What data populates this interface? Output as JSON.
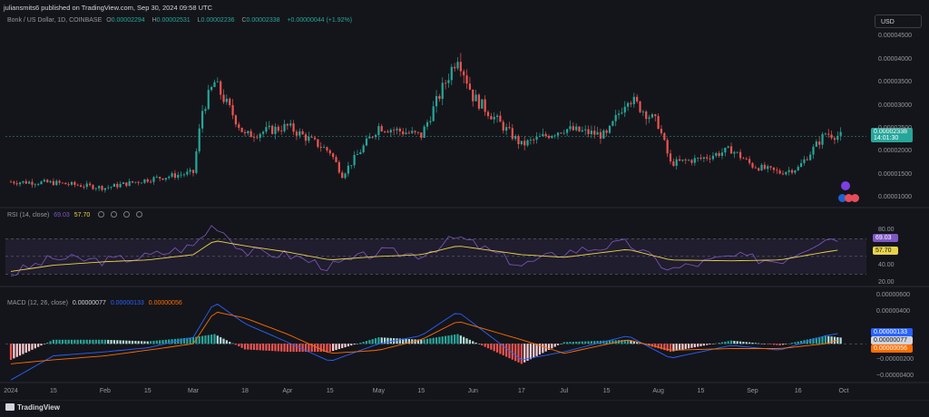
{
  "header": {
    "publisher": "juliansmits6 published on TradingView.com, Sep 30, 2024 09:58 UTC"
  },
  "symbol": {
    "name": "Bonk / US Dollar, 1D, COINBASE",
    "o_label": "O",
    "o": "0.00002294",
    "h_label": "H",
    "h": "0.00002531",
    "l_label": "L",
    "l": "0.00002236",
    "c_label": "C",
    "c": "0.00002338",
    "change": "+0.00000044 (+1.92%)"
  },
  "currency_button": "USD",
  "price_axis": {
    "ticks": [
      "0.00004500",
      "0.00004000",
      "0.00003500",
      "0.00003000",
      "0.00002500",
      "0.00002000",
      "0.00001500",
      "0.00001000"
    ],
    "last_price": "0.00002338",
    "countdown": "14:01:30"
  },
  "rsi": {
    "legend_name": "RSI (14, close)",
    "rsi_value": "69.03",
    "ma_value": "57.70",
    "ticks": [
      "80.00",
      "40.00",
      "20.00"
    ],
    "tag_rsi": "69.03",
    "tag_ma": "57.70"
  },
  "macd": {
    "legend_name": "MACD (12, 26, close)",
    "hist_value": "0.00000077",
    "macd_value": "0.00000133",
    "signal_value": "0.00000056",
    "ticks": [
      "0.00000600",
      "0.00000400",
      "−0.00000200",
      "−0.00000400"
    ],
    "tag_macd": "0.00000133",
    "tag_hist": "0.00000077",
    "tag_signal": "0.00000056"
  },
  "time_axis": [
    "2024",
    "15",
    "Feb",
    "15",
    "Mar",
    "18",
    "Apr",
    "15",
    "May",
    "15",
    "Jun",
    "17",
    "Jul",
    "15",
    "Aug",
    "15",
    "Sep",
    "16",
    "Oct"
  ],
  "brand": "TradingView",
  "colors": {
    "up": "#26a69a",
    "down": "#ef5350",
    "rsi": "#7e57c2",
    "rsi_ma": "#e8d34a",
    "macd": "#2962ff",
    "signal": "#ff6d00"
  },
  "chart_data": [
    {
      "type": "candlestick",
      "title": "Bonk / US Dollar, 1D, COINBASE",
      "x": [
        "2024-01-01",
        "2024-01-15",
        "2024-02-01",
        "2024-02-15",
        "2024-03-01",
        "2024-03-04",
        "2024-03-08",
        "2024-03-18",
        "2024-04-01",
        "2024-04-15",
        "2024-04-19",
        "2024-05-01",
        "2024-05-15",
        "2024-05-27",
        "2024-06-01",
        "2024-06-17",
        "2024-07-01",
        "2024-07-15",
        "2024-07-22",
        "2024-08-01",
        "2024-08-05",
        "2024-08-15",
        "2024-08-25",
        "2024-09-01",
        "2024-09-10",
        "2024-09-16",
        "2024-09-25",
        "2024-09-30"
      ],
      "close": [
        1.35e-05,
        1.33e-05,
        1.22e-05,
        1.4e-05,
        1.55e-05,
        2.9e-05,
        3.5e-05,
        2.35e-05,
        2.55e-05,
        2e-05,
        1.5e-05,
        2.55e-05,
        2.35e-05,
        4.1e-05,
        3.2e-05,
        2.15e-05,
        2.5e-05,
        2.35e-05,
        3.2e-05,
        2.6e-05,
        1.75e-05,
        1.85e-05,
        2.05e-05,
        1.7e-05,
        1.55e-05,
        1.65e-05,
        2.4e-05,
        2.338e-05
      ],
      "last": {
        "open": 2.294e-05,
        "high": 2.531e-05,
        "low": 2.236e-05,
        "close": 2.338e-05,
        "change": 4.4e-07,
        "change_pct": 1.92
      },
      "ylim": [
        8.5e-06,
        4.7e-05
      ]
    },
    {
      "type": "line",
      "title": "RSI (14, close)",
      "x": [
        "2024-01-01",
        "2024-01-15",
        "2024-02-01",
        "2024-02-15",
        "2024-03-01",
        "2024-03-08",
        "2024-03-18",
        "2024-04-01",
        "2024-04-15",
        "2024-05-01",
        "2024-05-15",
        "2024-05-27",
        "2024-06-17",
        "2024-07-01",
        "2024-07-22",
        "2024-08-05",
        "2024-08-25",
        "2024-09-10",
        "2024-09-25",
        "2024-09-30"
      ],
      "series": [
        {
          "name": "RSI",
          "values": [
            30,
            48,
            45,
            50,
            62,
            88,
            55,
            52,
            38,
            55,
            52,
            72,
            40,
            55,
            65,
            35,
            50,
            45,
            72,
            69.03
          ]
        },
        {
          "name": "MA",
          "values": [
            33,
            40,
            44,
            46,
            52,
            68,
            62,
            55,
            46,
            50,
            52,
            62,
            52,
            49,
            58,
            46,
            45,
            46,
            55,
            57.7
          ]
        }
      ],
      "ylim": [
        20,
        90
      ]
    },
    {
      "type": "line",
      "title": "MACD (12, 26, close)",
      "x": [
        "2024-01-01",
        "2024-01-15",
        "2024-02-01",
        "2024-02-15",
        "2024-03-01",
        "2024-03-08",
        "2024-03-18",
        "2024-04-01",
        "2024-04-15",
        "2024-05-01",
        "2024-05-15",
        "2024-05-27",
        "2024-06-17",
        "2024-07-01",
        "2024-07-22",
        "2024-08-05",
        "2024-08-25",
        "2024-09-10",
        "2024-09-25",
        "2024-09-30"
      ],
      "series": [
        {
          "name": "MACD",
          "values": [
            -4.5e-06,
            -1.5e-06,
            -1e-06,
            -5e-07,
            8e-07,
            5.2e-06,
            2.5e-06,
            2e-07,
            -2.2e-06,
            0.0,
            1e-06,
            4e-06,
            -2e-06,
            -1e-06,
            1e-06,
            -1.8e-06,
            -2e-07,
            -8e-07,
            1e-06,
            1.33e-06
          ]
        },
        {
          "name": "Signal",
          "values": [
            -2.5e-06,
            -2e-06,
            -1.5e-06,
            -8e-07,
            0.0,
            4e-06,
            3.2e-06,
            1.2e-06,
            -1.2e-06,
            -8e-07,
            5e-07,
            2.8e-06,
            5e-07,
            -1.2e-06,
            5e-07,
            -8e-07,
            -6e-07,
            -6e-07,
            0.0,
            5.6e-07
          ]
        },
        {
          "name": "Histogram",
          "values": [
            -2e-06,
            5e-07,
            5e-07,
            3e-07,
            8e-07,
            1.2e-06,
            -7e-07,
            -1e-06,
            -1e-06,
            8e-07,
            5e-07,
            1.2e-06,
            -2.5e-06,
            2e-07,
            5e-07,
            -1e-06,
            4e-07,
            -2e-07,
            1e-06,
            7.7e-07
          ]
        }
      ],
      "ylim": [
        -4.6e-06,
        6e-06
      ]
    }
  ]
}
